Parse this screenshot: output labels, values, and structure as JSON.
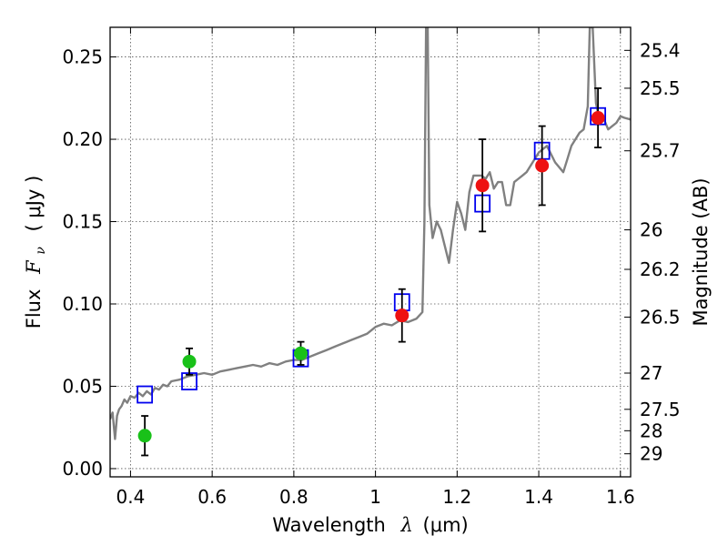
{
  "chart_data": {
    "type": "scatter",
    "xlabel": {
      "prefix": "Wavelength",
      "math": "λ",
      "unit": "(μm)"
    },
    "ylabel": {
      "prefix": "Flux",
      "math": "F",
      "sub": "ν",
      "unit": "( μJy )"
    },
    "y2label": "Magnitude (AB)",
    "xlim": [
      0.35,
      1.625
    ],
    "ylim": [
      -0.005,
      0.268
    ],
    "grid": true,
    "xticks": [
      0.4,
      0.6,
      0.8,
      1.0,
      1.2,
      1.4,
      1.6
    ],
    "xtick_labels": [
      "0.4",
      "0.6",
      "0.8",
      "1",
      "1.2",
      "1.4",
      "1.6"
    ],
    "yticks": [
      0.0,
      0.05,
      0.1,
      0.15,
      0.2,
      0.25
    ],
    "ytick_labels": [
      "0.00",
      "0.05",
      "0.10",
      "0.15",
      "0.20",
      "0.25"
    ],
    "y2ticks": [
      {
        "label": "25.4",
        "flux": 0.254
      },
      {
        "label": "25.5",
        "flux": 0.231
      },
      {
        "label": "25.7",
        "flux": 0.193
      },
      {
        "label": "26",
        "flux": 0.145
      },
      {
        "label": "26.2",
        "flux": 0.121
      },
      {
        "label": "26.5",
        "flux": 0.092
      },
      {
        "label": "27",
        "flux": 0.058
      },
      {
        "label": "27.5",
        "flux": 0.036
      },
      {
        "label": "28",
        "flux": 0.023
      },
      {
        "label": "29",
        "flux": 0.009
      }
    ],
    "series": [
      {
        "kind": "line",
        "color": "#808080",
        "points": [
          [
            0.35,
            0.03
          ],
          [
            0.356,
            0.034
          ],
          [
            0.362,
            0.018
          ],
          [
            0.367,
            0.032
          ],
          [
            0.372,
            0.036
          ],
          [
            0.378,
            0.038
          ],
          [
            0.385,
            0.042
          ],
          [
            0.392,
            0.04
          ],
          [
            0.4,
            0.044
          ],
          [
            0.41,
            0.043
          ],
          [
            0.42,
            0.046
          ],
          [
            0.43,
            0.044
          ],
          [
            0.44,
            0.047
          ],
          [
            0.45,
            0.045
          ],
          [
            0.46,
            0.049
          ],
          [
            0.47,
            0.048
          ],
          [
            0.48,
            0.051
          ],
          [
            0.49,
            0.05
          ],
          [
            0.5,
            0.053
          ],
          [
            0.52,
            0.054
          ],
          [
            0.54,
            0.056
          ],
          [
            0.56,
            0.057
          ],
          [
            0.58,
            0.058
          ],
          [
            0.6,
            0.057
          ],
          [
            0.62,
            0.059
          ],
          [
            0.64,
            0.06
          ],
          [
            0.66,
            0.061
          ],
          [
            0.68,
            0.062
          ],
          [
            0.7,
            0.063
          ],
          [
            0.72,
            0.062
          ],
          [
            0.74,
            0.064
          ],
          [
            0.76,
            0.063
          ],
          [
            0.78,
            0.065
          ],
          [
            0.8,
            0.066
          ],
          [
            0.82,
            0.066
          ],
          [
            0.84,
            0.068
          ],
          [
            0.86,
            0.07
          ],
          [
            0.88,
            0.072
          ],
          [
            0.9,
            0.074
          ],
          [
            0.92,
            0.076
          ],
          [
            0.94,
            0.078
          ],
          [
            0.96,
            0.08
          ],
          [
            0.98,
            0.082
          ],
          [
            1.0,
            0.086
          ],
          [
            1.02,
            0.088
          ],
          [
            1.04,
            0.087
          ],
          [
            1.06,
            0.09
          ],
          [
            1.08,
            0.089
          ],
          [
            1.1,
            0.091
          ],
          [
            1.115,
            0.095
          ],
          [
            1.12,
            0.15
          ],
          [
            1.124,
            0.268
          ],
          [
            1.128,
            0.268
          ],
          [
            1.132,
            0.16
          ],
          [
            1.14,
            0.14
          ],
          [
            1.15,
            0.15
          ],
          [
            1.16,
            0.145
          ],
          [
            1.17,
            0.135
          ],
          [
            1.18,
            0.125
          ],
          [
            1.19,
            0.145
          ],
          [
            1.2,
            0.162
          ],
          [
            1.21,
            0.155
          ],
          [
            1.22,
            0.145
          ],
          [
            1.23,
            0.168
          ],
          [
            1.24,
            0.178
          ],
          [
            1.25,
            0.178
          ],
          [
            1.26,
            0.178
          ],
          [
            1.27,
            0.176
          ],
          [
            1.28,
            0.18
          ],
          [
            1.29,
            0.17
          ],
          [
            1.3,
            0.174
          ],
          [
            1.31,
            0.174
          ],
          [
            1.32,
            0.16
          ],
          [
            1.33,
            0.16
          ],
          [
            1.34,
            0.174
          ],
          [
            1.35,
            0.176
          ],
          [
            1.36,
            0.178
          ],
          [
            1.37,
            0.18
          ],
          [
            1.38,
            0.184
          ],
          [
            1.39,
            0.188
          ],
          [
            1.4,
            0.192
          ],
          [
            1.42,
            0.196
          ],
          [
            1.44,
            0.186
          ],
          [
            1.46,
            0.18
          ],
          [
            1.47,
            0.188
          ],
          [
            1.48,
            0.196
          ],
          [
            1.49,
            0.2
          ],
          [
            1.5,
            0.204
          ],
          [
            1.51,
            0.206
          ],
          [
            1.52,
            0.22
          ],
          [
            1.525,
            0.268
          ],
          [
            1.532,
            0.268
          ],
          [
            1.54,
            0.222
          ],
          [
            1.55,
            0.21
          ],
          [
            1.56,
            0.212
          ],
          [
            1.57,
            0.206
          ],
          [
            1.58,
            0.208
          ],
          [
            1.59,
            0.21
          ],
          [
            1.6,
            0.214
          ],
          [
            1.61,
            0.213
          ],
          [
            1.625,
            0.212
          ]
        ]
      },
      {
        "kind": "box-marker",
        "color": "#0000ee",
        "points": [
          [
            0.435,
            0.045
          ],
          [
            0.544,
            0.053
          ],
          [
            0.817,
            0.067
          ],
          [
            1.065,
            0.101
          ],
          [
            1.262,
            0.161
          ],
          [
            1.408,
            0.193
          ],
          [
            1.545,
            0.214
          ]
        ]
      },
      {
        "kind": "dot-marker",
        "color": "#19c119",
        "points": [
          {
            "x": 0.435,
            "y": 0.02,
            "err": 0.012
          },
          {
            "x": 0.544,
            "y": 0.065,
            "err": 0.008
          },
          {
            "x": 0.817,
            "y": 0.07,
            "err": 0.007
          }
        ]
      },
      {
        "kind": "dot-marker",
        "color": "#ee1111",
        "points": [
          {
            "x": 1.065,
            "y": 0.093,
            "err": 0.016
          },
          {
            "x": 1.262,
            "y": 0.172,
            "err": 0.028
          },
          {
            "x": 1.408,
            "y": 0.184,
            "err": 0.024
          },
          {
            "x": 1.545,
            "y": 0.213,
            "err": 0.018
          }
        ]
      }
    ]
  }
}
